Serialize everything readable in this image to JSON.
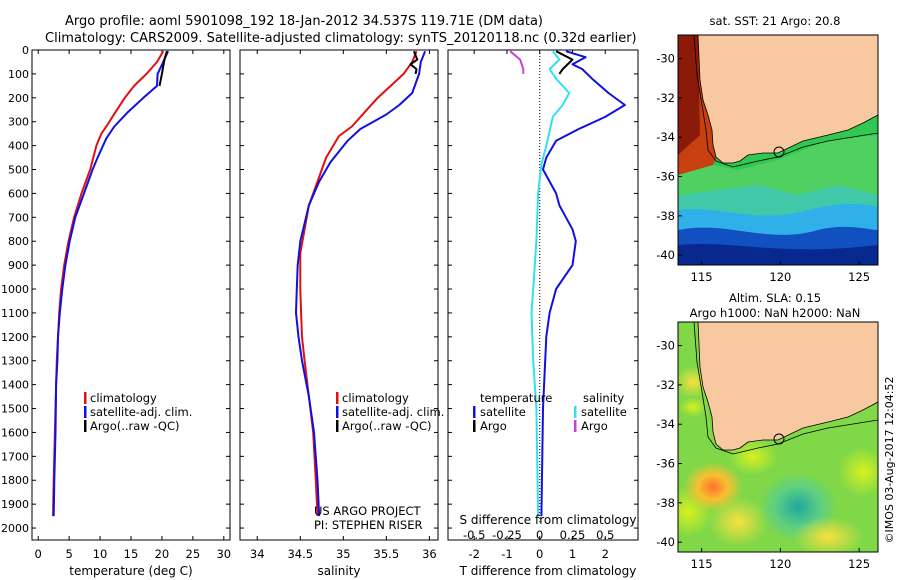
{
  "header": {
    "line1": "Argo profile: aoml 5901098_192 18-Jan-2012 34.537S 119.71E (DM data)",
    "line2": "Climatology: CARS2009. Satellite-adjusted climatology: synTS_20120118.nc (0.32d earlier)"
  },
  "credits": {
    "project": "US ARGO PROJECT",
    "pi": "PI: STEPHEN RISER",
    "timestamp": "©IMOS 03-Aug-2017 12:04:52"
  },
  "colors": {
    "climatology": "#e01010",
    "satellite_clim": "#1010e0",
    "argo": "#000000",
    "sat_salinity": "#33e0f0",
    "argo_salinity": "#d040d0",
    "land": "#f8c8a0"
  },
  "chart_data": [
    {
      "id": "temperature",
      "type": "line",
      "xlabel": "temperature (deg C)",
      "xlim": [
        -1,
        31
      ],
      "xticks": [
        0,
        5,
        10,
        15,
        20,
        25,
        30
      ],
      "ylim": [
        2050,
        0
      ],
      "yticks": [
        0,
        100,
        200,
        300,
        400,
        500,
        600,
        700,
        800,
        900,
        1000,
        1100,
        1200,
        1300,
        1400,
        1500,
        1600,
        1700,
        1800,
        1900,
        2000
      ],
      "legend": [
        "climatology",
        "satellite-adj. clim.",
        "Argo(..raw -QC)"
      ],
      "legend_position": "lower-center",
      "series": [
        {
          "name": "climatology",
          "color": "#e01010",
          "points": [
            [
              20.2,
              5
            ],
            [
              19.2,
              50
            ],
            [
              17.5,
              100
            ],
            [
              15.5,
              150
            ],
            [
              14.0,
              200
            ],
            [
              12.5,
              260
            ],
            [
              11.0,
              320
            ],
            [
              10.2,
              350
            ],
            [
              9.4,
              400
            ],
            [
              8.4,
              500
            ],
            [
              7.0,
              600
            ],
            [
              5.8,
              700
            ],
            [
              4.9,
              800
            ],
            [
              4.2,
              900
            ],
            [
              3.7,
              1000
            ],
            [
              3.4,
              1100
            ],
            [
              3.2,
              1200
            ],
            [
              3.0,
              1300
            ],
            [
              2.9,
              1400
            ],
            [
              2.7,
              1600
            ],
            [
              2.5,
              1800
            ],
            [
              2.4,
              1950
            ]
          ]
        },
        {
          "name": "satellite-adj. clim.",
          "color": "#1010e0",
          "points": [
            [
              21.0,
              5
            ],
            [
              20.2,
              50
            ],
            [
              19.3,
              100
            ],
            [
              19.2,
              150
            ],
            [
              17.0,
              200
            ],
            [
              14.5,
              260
            ],
            [
              12.3,
              320
            ],
            [
              11.0,
              370
            ],
            [
              9.6,
              450
            ],
            [
              8.8,
              500
            ],
            [
              7.4,
              600
            ],
            [
              6.0,
              700
            ],
            [
              5.1,
              800
            ],
            [
              4.4,
              900
            ],
            [
              3.9,
              1000
            ],
            [
              3.5,
              1100
            ],
            [
              3.2,
              1200
            ],
            [
              3.1,
              1300
            ],
            [
              2.9,
              1400
            ],
            [
              2.8,
              1600
            ],
            [
              2.6,
              1800
            ],
            [
              2.5,
              1950
            ]
          ]
        },
        {
          "name": "Argo(..raw -QC)",
          "color": "#000000",
          "points": [
            [
              20.8,
              5
            ],
            [
              20.4,
              40
            ],
            [
              20.0,
              100
            ],
            [
              19.6,
              150
            ]
          ]
        }
      ]
    },
    {
      "id": "salinity",
      "type": "line",
      "xlabel": "salinity",
      "xlim": [
        33.8,
        36.1
      ],
      "xticks": [
        34,
        34.5,
        35,
        35.5,
        36
      ],
      "ylim": [
        2050,
        0
      ],
      "legend": [
        "climatology",
        "satellite-adj. clim.",
        "Argo(..raw -QC)"
      ],
      "legend_position": "lower-center",
      "series": [
        {
          "name": "climatology",
          "color": "#e01010",
          "points": [
            [
              35.85,
              5
            ],
            [
              35.8,
              50
            ],
            [
              35.7,
              100
            ],
            [
              35.55,
              150
            ],
            [
              35.4,
              200
            ],
            [
              35.25,
              260
            ],
            [
              35.1,
              320
            ],
            [
              34.95,
              360
            ],
            [
              34.8,
              450
            ],
            [
              34.7,
              550
            ],
            [
              34.6,
              650
            ],
            [
              34.55,
              750
            ],
            [
              34.5,
              850
            ],
            [
              34.5,
              1000
            ],
            [
              34.51,
              1100
            ],
            [
              34.52,
              1200
            ],
            [
              34.55,
              1300
            ],
            [
              34.6,
              1450
            ],
            [
              34.65,
              1600
            ],
            [
              34.68,
              1800
            ],
            [
              34.7,
              1950
            ]
          ]
        },
        {
          "name": "satellite-adj. clim.",
          "color": "#1010e0",
          "points": [
            [
              35.95,
              5
            ],
            [
              35.9,
              50
            ],
            [
              35.88,
              100
            ],
            [
              35.8,
              180
            ],
            [
              35.65,
              230
            ],
            [
              35.5,
              270
            ],
            [
              35.35,
              300
            ],
            [
              35.2,
              330
            ],
            [
              35.05,
              380
            ],
            [
              34.85,
              470
            ],
            [
              34.72,
              550
            ],
            [
              34.6,
              650
            ],
            [
              34.5,
              800
            ],
            [
              34.47,
              900
            ],
            [
              34.46,
              1000
            ],
            [
              34.45,
              1100
            ],
            [
              34.48,
              1200
            ],
            [
              34.52,
              1300
            ],
            [
              34.6,
              1450
            ],
            [
              34.66,
              1600
            ],
            [
              34.7,
              1800
            ],
            [
              34.72,
              1950
            ]
          ]
        },
        {
          "name": "Argo(..raw -QC)",
          "color": "#000000",
          "points": [
            [
              35.82,
              5
            ],
            [
              35.86,
              40
            ],
            [
              35.78,
              60
            ],
            [
              35.85,
              80
            ],
            [
              35.84,
              100
            ]
          ]
        }
      ]
    },
    {
      "id": "difference",
      "type": "line",
      "xlabel": "T difference from climatology",
      "xlabel_top": "S difference from climatology",
      "xlim": [
        -2.8,
        3.0
      ],
      "xticks": [
        -2,
        -1,
        0,
        1,
        2
      ],
      "xticks_top": [
        "-0.5",
        "-0.25",
        "0",
        "0.25",
        "0.5"
      ],
      "ylim": [
        2050,
        0
      ],
      "legend": [
        "temperature",
        "satellite",
        "Argo",
        "salinity",
        "satellite",
        "Argo"
      ],
      "legend_position": "lower-center",
      "series": [
        {
          "name": "temperature satellite",
          "color": "#1010e0",
          "points": [
            [
              0.8,
              5
            ],
            [
              1.4,
              30
            ],
            [
              1.0,
              60
            ],
            [
              1.3,
              80
            ],
            [
              1.6,
              120
            ],
            [
              2.1,
              180
            ],
            [
              2.6,
              230
            ],
            [
              2.0,
              280
            ],
            [
              1.2,
              330
            ],
            [
              0.5,
              380
            ],
            [
              0.2,
              450
            ],
            [
              0.1,
              500
            ],
            [
              0.3,
              550
            ],
            [
              0.5,
              600
            ],
            [
              0.6,
              650
            ],
            [
              0.8,
              700
            ],
            [
              1.0,
              750
            ],
            [
              1.1,
              800
            ],
            [
              1.0,
              900
            ],
            [
              0.5,
              1000
            ],
            [
              0.3,
              1100
            ],
            [
              0.2,
              1200
            ],
            [
              0.1,
              1500
            ],
            [
              0.05,
              1950
            ]
          ]
        },
        {
          "name": "temperature Argo",
          "color": "#000000",
          "points": [
            [
              0.5,
              5
            ],
            [
              1.0,
              40
            ],
            [
              0.7,
              80
            ],
            [
              0.6,
              100
            ]
          ]
        },
        {
          "name": "salinity satellite",
          "color": "#33e0f0",
          "points": [
            [
              0.4,
              5
            ],
            [
              0.6,
              40
            ],
            [
              0.3,
              80
            ],
            [
              0.5,
              120
            ],
            [
              0.9,
              180
            ],
            [
              0.7,
              230
            ],
            [
              0.4,
              280
            ],
            [
              0.3,
              340
            ],
            [
              0.2,
              400
            ],
            [
              0.05,
              480
            ],
            [
              -0.05,
              600
            ],
            [
              -0.1,
              800
            ],
            [
              -0.2,
              1000
            ],
            [
              -0.25,
              1100
            ],
            [
              -0.2,
              1300
            ],
            [
              -0.1,
              1500
            ],
            [
              -0.05,
              1950
            ]
          ]
        },
        {
          "name": "salinity Argo",
          "color": "#d040d0",
          "points": [
            [
              -0.9,
              5
            ],
            [
              -0.6,
              40
            ],
            [
              -0.5,
              80
            ],
            [
              -0.5,
              100
            ]
          ]
        }
      ]
    },
    {
      "id": "map-sst",
      "type": "heatmap",
      "title": "sat. SST: 21 Argo: 20.8",
      "xticks": [
        115,
        120,
        125
      ],
      "yticks": [
        -30,
        -32,
        -34,
        -36,
        -38,
        -40
      ],
      "xlim": [
        113.5,
        126.2
      ],
      "ylim": [
        -40.5,
        -28.8
      ],
      "marker": [
        119.71,
        -34.537
      ]
    },
    {
      "id": "map-sla",
      "type": "heatmap",
      "title_line1": "Altim. SLA: 0.15",
      "title_line2": "Argo h1000: NaN h2000: NaN",
      "xticks": [
        115,
        120,
        125
      ],
      "yticks": [
        -30,
        -32,
        -34,
        -36,
        -38,
        -40
      ],
      "xlim": [
        113.5,
        126.2
      ],
      "ylim": [
        -40.5,
        -28.8
      ],
      "marker": [
        119.71,
        -34.537
      ]
    }
  ]
}
